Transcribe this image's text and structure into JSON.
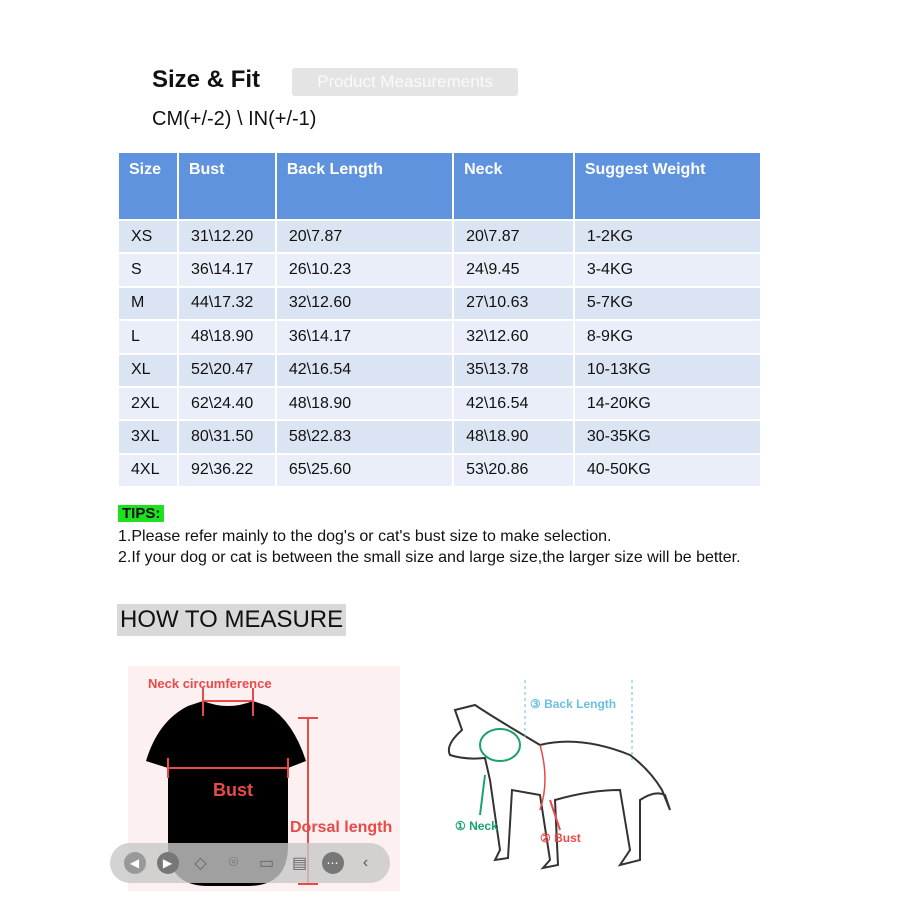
{
  "header": {
    "title": "Size & Fit",
    "badge": "Product Measurements",
    "units": "CM(+/-2) \\ IN(+/-1)"
  },
  "table": {
    "columns": [
      "Size",
      "Bust",
      "Back Length",
      "Neck",
      "Suggest Weight"
    ],
    "rows": [
      [
        "XS",
        "31\\12.20",
        "20\\7.87",
        "20\\7.87",
        "1-2KG"
      ],
      [
        "S",
        "36\\14.17",
        "26\\10.23",
        "24\\9.45",
        "3-4KG"
      ],
      [
        "M",
        "44\\17.32",
        "32\\12.60",
        "27\\10.63",
        "5-7KG"
      ],
      [
        "L",
        "48\\18.90",
        "36\\14.17",
        "32\\12.60",
        "8-9KG"
      ],
      [
        "XL",
        "52\\20.47",
        "42\\16.54",
        "35\\13.78",
        "10-13KG"
      ],
      [
        "2XL",
        "62\\24.40",
        "48\\18.90",
        "42\\16.54",
        "14-20KG"
      ],
      [
        "3XL",
        "80\\31.50",
        "58\\22.83",
        "48\\18.90",
        "30-35KG"
      ],
      [
        "4XL",
        "92\\36.22",
        "65\\25.60",
        "53\\20.86",
        "40-50KG"
      ]
    ]
  },
  "tips": {
    "label": "TIPS:",
    "line1": "1.Please refer mainly to the dog's or cat's  bust size to make selection.",
    "line2": "2.If your dog or cat is between the small size and large size,the larger size will be better."
  },
  "measure": {
    "heading": "HOW TO MEASURE",
    "shirt": {
      "neck": "Neck circumference",
      "bust": "Bust",
      "dorsal": "Dorsal length"
    },
    "dog": {
      "back": "③ Back Length",
      "neck": "① Neck",
      "bust": "② Bust"
    }
  },
  "colors": {
    "header": "#5f93de",
    "tips": "#1fe01f",
    "red": "#e84a4a",
    "green": "#1aa36a",
    "cyan": "#6bbfe0"
  },
  "toolbar": {
    "icons": [
      "previous-icon",
      "play-icon",
      "eraser-icon",
      "screenshot-icon",
      "video-icon",
      "comment-icon",
      "more-icon",
      "collapse-icon"
    ]
  }
}
